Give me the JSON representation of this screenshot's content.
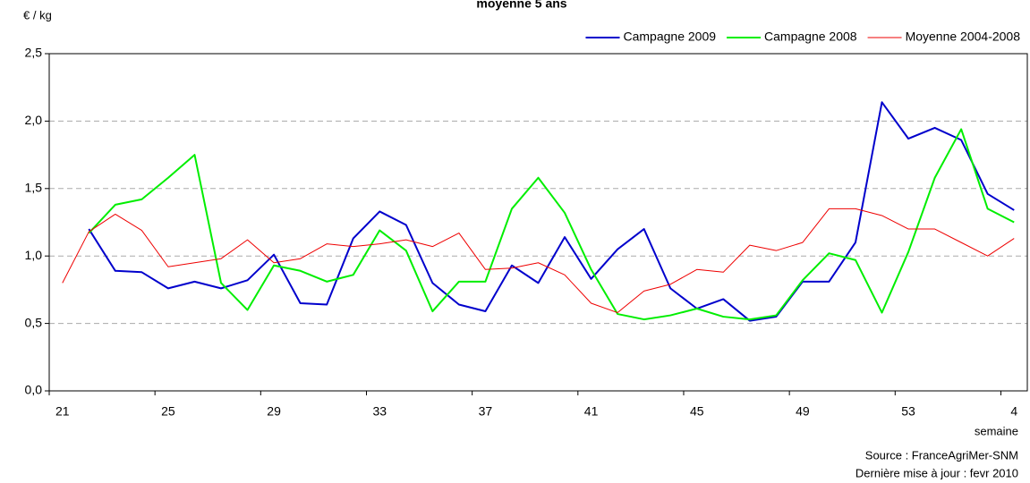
{
  "chart_data": {
    "type": "line",
    "title": "moyenne 5 ans",
    "y_label": "€ / kg",
    "x_label": "semaine",
    "source": "Source : FranceAgriMer-SNM",
    "updated": "Dernière mise à jour : fevr 2010",
    "categories": [
      "21",
      null,
      null,
      null,
      "25",
      null,
      null,
      null,
      "29",
      null,
      null,
      null,
      "33",
      null,
      null,
      null,
      "37",
      null,
      null,
      null,
      "41",
      null,
      null,
      null,
      "45",
      null,
      null,
      null,
      "49",
      null,
      null,
      null,
      "53",
      null,
      null,
      null,
      "4"
    ],
    "series": [
      {
        "name": "Campagne 2009",
        "color": "#0000cc",
        "width": 2,
        "values": [
          null,
          1.2,
          0.89,
          0.88,
          0.76,
          0.81,
          0.76,
          0.82,
          1.01,
          0.65,
          0.64,
          1.13,
          1.33,
          1.23,
          0.8,
          0.64,
          0.59,
          0.93,
          0.8,
          1.14,
          0.83,
          1.05,
          1.2,
          0.76,
          0.61,
          0.68,
          0.52,
          0.55,
          0.81,
          0.81,
          1.1,
          2.14,
          1.87,
          1.95,
          1.86,
          1.46,
          1.34
        ]
      },
      {
        "name": "Campagne 2008",
        "color": "#00ee00",
        "width": 2,
        "values": [
          null,
          1.17,
          1.38,
          1.42,
          1.58,
          1.75,
          0.8,
          0.6,
          0.93,
          0.89,
          0.81,
          0.86,
          1.19,
          1.04,
          0.59,
          0.81,
          0.81,
          1.35,
          1.58,
          1.32,
          0.9,
          0.57,
          0.53,
          0.56,
          0.61,
          0.55,
          0.53,
          0.56,
          0.82,
          1.02,
          0.97,
          0.58,
          1.03,
          1.58,
          1.94,
          1.35,
          1.25
        ]
      },
      {
        "name": "Moyenne 2004-2008",
        "color": "#ee0000",
        "width": 1,
        "values": [
          0.8,
          1.18,
          1.31,
          1.19,
          0.92,
          0.95,
          0.98,
          1.12,
          0.95,
          0.98,
          1.09,
          1.07,
          1.09,
          1.12,
          1.07,
          1.17,
          0.9,
          0.91,
          0.95,
          0.86,
          0.65,
          0.58,
          0.74,
          0.79,
          0.9,
          0.88,
          1.08,
          1.04,
          1.1,
          1.35,
          1.35,
          1.3,
          1.2,
          1.2,
          1.1,
          1.0,
          1.13
        ]
      }
    ],
    "ylim": [
      0,
      2.5
    ],
    "yticks": [
      {
        "value": 0,
        "label": "0,0"
      },
      {
        "value": 0.5,
        "label": "0,5"
      },
      {
        "value": 1,
        "label": "1,0"
      },
      {
        "value": 1.5,
        "label": "1,5"
      },
      {
        "value": 2,
        "label": "2,0"
      },
      {
        "value": 2.5,
        "label": "2,5"
      }
    ],
    "grid": true
  }
}
